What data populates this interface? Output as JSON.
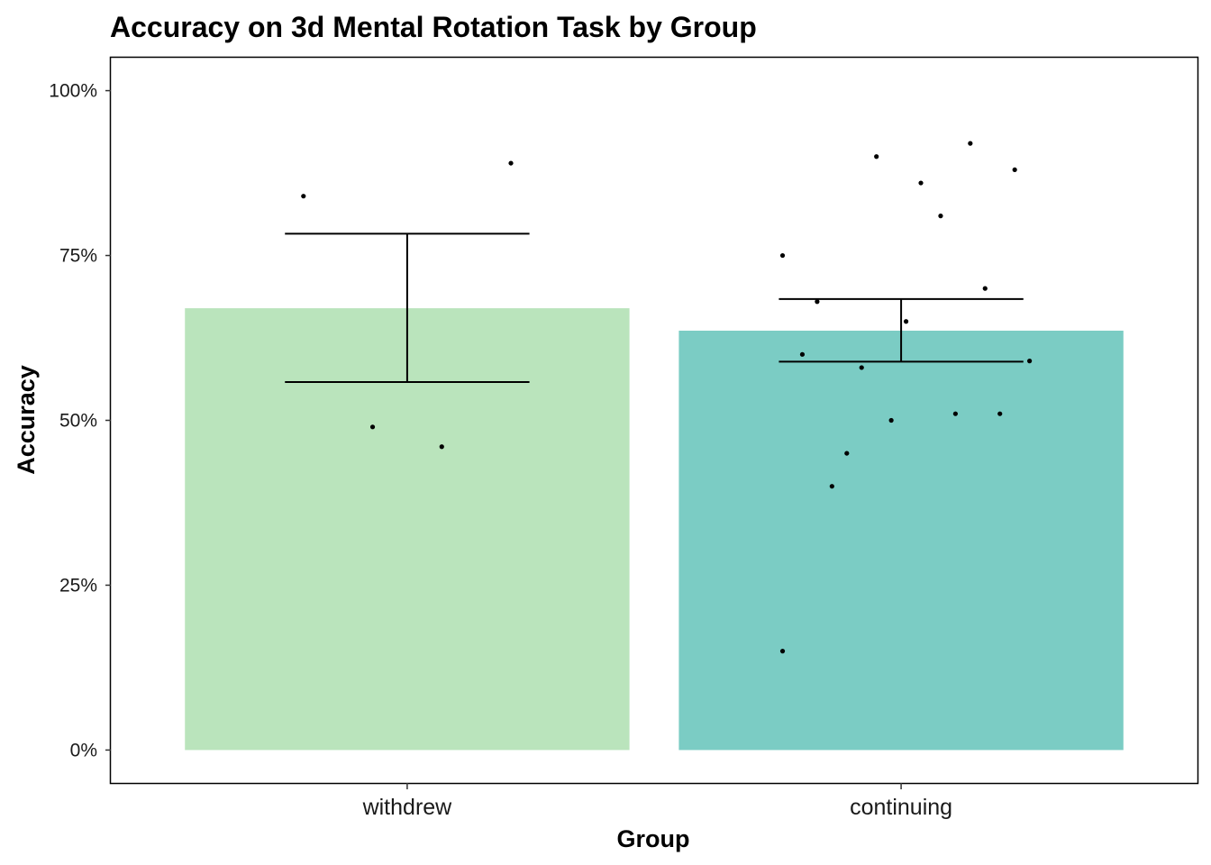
{
  "chart_data": {
    "type": "bar",
    "title": "Accuracy on 3d Mental Rotation Task by Group",
    "xlabel": "Group",
    "ylabel": "Accuracy",
    "categories": [
      "withdrew",
      "continuing"
    ],
    "values": [
      0.67,
      0.636
    ],
    "bar_colors": [
      "#bae4bc",
      "#7bccc4"
    ],
    "error_bars": [
      {
        "low": 0.558,
        "high": 0.783
      },
      {
        "low": 0.589,
        "high": 0.684
      }
    ],
    "ylim": [
      -0.05,
      1.05
    ],
    "yticks": [
      0,
      0.25,
      0.5,
      0.75,
      1.0
    ],
    "ytick_labels": [
      "0%",
      "25%",
      "50%",
      "75%",
      "100%"
    ],
    "grid": false,
    "points": [
      {
        "category": "withdrew",
        "x_offset": -0.21,
        "y": 0.84
      },
      {
        "category": "withdrew",
        "x_offset": 0.21,
        "y": 0.89
      },
      {
        "category": "withdrew",
        "x_offset": -0.07,
        "y": 0.49
      },
      {
        "category": "withdrew",
        "x_offset": 0.07,
        "y": 0.46
      },
      {
        "category": "continuing",
        "x_offset": -0.24,
        "y": 0.75
      },
      {
        "category": "continuing",
        "x_offset": -0.05,
        "y": 0.9
      },
      {
        "category": "continuing",
        "x_offset": 0.04,
        "y": 0.86
      },
      {
        "category": "continuing",
        "x_offset": 0.14,
        "y": 0.92
      },
      {
        "category": "continuing",
        "x_offset": 0.23,
        "y": 0.88
      },
      {
        "category": "continuing",
        "x_offset": 0.08,
        "y": 0.81
      },
      {
        "category": "continuing",
        "x_offset": 0.17,
        "y": 0.7
      },
      {
        "category": "continuing",
        "x_offset": -0.17,
        "y": 0.68
      },
      {
        "category": "continuing",
        "x_offset": 0.01,
        "y": 0.65
      },
      {
        "category": "continuing",
        "x_offset": -0.2,
        "y": 0.6
      },
      {
        "category": "continuing",
        "x_offset": -0.08,
        "y": 0.58
      },
      {
        "category": "continuing",
        "x_offset": 0.26,
        "y": 0.59
      },
      {
        "category": "continuing",
        "x_offset": -0.02,
        "y": 0.5
      },
      {
        "category": "continuing",
        "x_offset": 0.11,
        "y": 0.51
      },
      {
        "category": "continuing",
        "x_offset": 0.2,
        "y": 0.51
      },
      {
        "category": "continuing",
        "x_offset": -0.11,
        "y": 0.45
      },
      {
        "category": "continuing",
        "x_offset": -0.14,
        "y": 0.4
      },
      {
        "category": "continuing",
        "x_offset": -0.24,
        "y": 0.15
      }
    ]
  }
}
